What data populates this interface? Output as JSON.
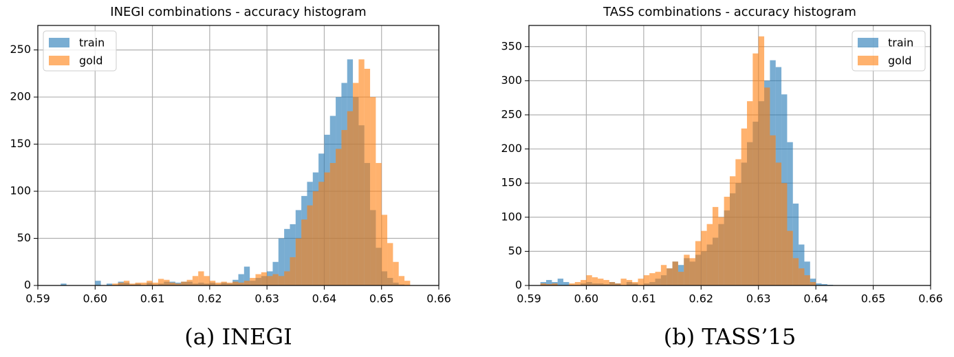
{
  "chart_data": [
    {
      "type": "histogram",
      "title": "INEGI combinations - accuracy histogram",
      "caption": "(a) INEGI",
      "bins": [
        0.594,
        0.595,
        0.596,
        0.597,
        0.598,
        0.599,
        0.6,
        0.601,
        0.602,
        0.603,
        0.604,
        0.605,
        0.606,
        0.607,
        0.608,
        0.609,
        0.61,
        0.611,
        0.612,
        0.613,
        0.614,
        0.615,
        0.616,
        0.617,
        0.618,
        0.619,
        0.62,
        0.621,
        0.622,
        0.623,
        0.624,
        0.625,
        0.626,
        0.627,
        0.628,
        0.629,
        0.63,
        0.631,
        0.632,
        0.633,
        0.634,
        0.635,
        0.636,
        0.637,
        0.638,
        0.639,
        0.64,
        0.641,
        0.642,
        0.643,
        0.644,
        0.645,
        0.646,
        0.647,
        0.648,
        0.649,
        0.65,
        0.651,
        0.652,
        0.653,
        0.654,
        0.655,
        0.656
      ],
      "series": [
        {
          "name": "train",
          "color": "#1f77b4",
          "values": [
            2,
            0,
            0,
            0,
            0,
            0,
            5,
            0,
            2,
            0,
            4,
            3,
            1,
            2,
            0,
            3,
            1,
            2,
            4,
            4,
            3,
            4,
            4,
            2,
            3,
            2,
            3,
            1,
            3,
            2,
            6,
            12,
            20,
            5,
            8,
            10,
            15,
            25,
            50,
            60,
            65,
            80,
            95,
            110,
            120,
            140,
            160,
            180,
            200,
            215,
            240,
            200,
            170,
            130,
            80,
            40,
            15,
            8,
            3,
            1,
            0,
            0
          ]
        },
        {
          "name": "gold",
          "color": "#ff7f0e",
          "values": [
            0,
            0,
            0,
            0,
            0,
            0,
            0,
            0,
            0,
            2,
            3,
            5,
            2,
            3,
            3,
            5,
            3,
            7,
            6,
            3,
            2,
            4,
            6,
            10,
            15,
            10,
            5,
            3,
            4,
            3,
            4,
            3,
            5,
            8,
            12,
            14,
            10,
            12,
            10,
            15,
            30,
            50,
            70,
            85,
            100,
            110,
            120,
            130,
            145,
            165,
            185,
            215,
            240,
            230,
            200,
            130,
            75,
            45,
            25,
            10,
            5,
            0
          ]
        }
      ],
      "alpha": 0.6,
      "xlim": [
        0.59,
        0.66
      ],
      "xticks": [
        0.59,
        {
          "value": 0.6,
          "label": "0.60"
        },
        0.61,
        0.62,
        0.63,
        0.64,
        0.65,
        0.66
      ],
      "ylim": [
        0,
        276
      ],
      "yticks": [
        0,
        50,
        100,
        150,
        200,
        250
      ],
      "grid": true,
      "legend": "upper left"
    },
    {
      "type": "histogram",
      "title": "TASS combinations - accuracy histogram",
      "caption": "(b) TASS’15",
      "bins": [
        0.591,
        0.592,
        0.593,
        0.594,
        0.595,
        0.596,
        0.597,
        0.598,
        0.599,
        0.6,
        0.601,
        0.602,
        0.603,
        0.604,
        0.605,
        0.606,
        0.607,
        0.608,
        0.609,
        0.61,
        0.611,
        0.612,
        0.613,
        0.614,
        0.615,
        0.616,
        0.617,
        0.618,
        0.619,
        0.62,
        0.621,
        0.622,
        0.623,
        0.624,
        0.625,
        0.626,
        0.627,
        0.628,
        0.629,
        0.63,
        0.631,
        0.632,
        0.633,
        0.634,
        0.635,
        0.636,
        0.637,
        0.638,
        0.639,
        0.64,
        0.641,
        0.642,
        0.643
      ],
      "series": [
        {
          "name": "train",
          "color": "#1f77b4",
          "values": [
            0,
            5,
            8,
            5,
            10,
            5,
            0,
            0,
            3,
            5,
            3,
            3,
            2,
            5,
            3,
            0,
            5,
            3,
            0,
            3,
            5,
            10,
            15,
            25,
            35,
            30,
            40,
            35,
            45,
            50,
            60,
            70,
            90,
            110,
            135,
            150,
            180,
            210,
            240,
            270,
            300,
            330,
            320,
            280,
            210,
            120,
            60,
            35,
            10,
            3,
            2,
            1
          ]
        },
        {
          "name": "gold",
          "color": "#ff7f0e",
          "values": [
            0,
            3,
            2,
            3,
            0,
            0,
            3,
            5,
            8,
            15,
            12,
            10,
            8,
            5,
            3,
            10,
            8,
            5,
            10,
            15,
            18,
            20,
            30,
            25,
            35,
            20,
            45,
            40,
            65,
            80,
            90,
            115,
            100,
            130,
            160,
            185,
            230,
            270,
            340,
            365,
            290,
            220,
            180,
            150,
            80,
            40,
            25,
            15,
            5,
            0,
            0,
            0
          ]
        }
      ],
      "alpha": 0.6,
      "xlim": [
        0.59,
        0.66
      ],
      "xticks": [
        0.59,
        {
          "value": 0.6,
          "label": "0.60"
        },
        0.61,
        0.62,
        0.63,
        0.64,
        0.65,
        0.66
      ],
      "ylim": [
        0,
        381
      ],
      "yticks": [
        0,
        50,
        100,
        150,
        200,
        250,
        300,
        350
      ],
      "grid": true,
      "legend": "upper right"
    }
  ]
}
